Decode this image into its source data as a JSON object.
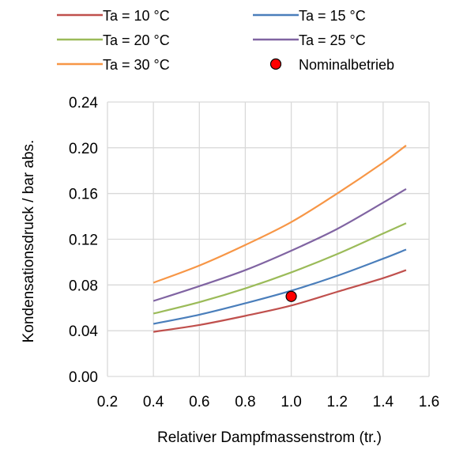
{
  "chart_data": {
    "type": "line",
    "xlabel": "Relativer Dampfmassenstrom (tr.)",
    "ylabel": "Kondensationsdruck / bar abs.",
    "xlim": [
      0.2,
      1.6
    ],
    "ylim": [
      0.0,
      0.24
    ],
    "x_ticks": [
      "0.2",
      "0.4",
      "0.6",
      "0.8",
      "1.0",
      "1.2",
      "1.4",
      "1.6"
    ],
    "y_ticks": [
      "0.00",
      "0.04",
      "0.08",
      "0.12",
      "0.16",
      "0.20",
      "0.24"
    ],
    "grid": true,
    "legend_position": "top",
    "series": [
      {
        "name": "Ta = 10 °C",
        "color": "#c0504d",
        "x": [
          0.4,
          0.6,
          0.8,
          1.0,
          1.2,
          1.4,
          1.5
        ],
        "y": [
          0.039,
          0.045,
          0.053,
          0.062,
          0.074,
          0.086,
          0.093
        ]
      },
      {
        "name": "Ta = 15 °C",
        "color": "#4a7ebb",
        "x": [
          0.4,
          0.6,
          0.8,
          1.0,
          1.2,
          1.4,
          1.5
        ],
        "y": [
          0.046,
          0.054,
          0.064,
          0.075,
          0.088,
          0.103,
          0.111
        ]
      },
      {
        "name": "Ta = 20 °C",
        "color": "#9bbb59",
        "x": [
          0.4,
          0.6,
          0.8,
          1.0,
          1.2,
          1.4,
          1.5
        ],
        "y": [
          0.055,
          0.065,
          0.077,
          0.091,
          0.107,
          0.125,
          0.134
        ]
      },
      {
        "name": "Ta = 25 °C",
        "color": "#8064a2",
        "x": [
          0.4,
          0.6,
          0.8,
          1.0,
          1.2,
          1.4,
          1.5
        ],
        "y": [
          0.066,
          0.079,
          0.093,
          0.11,
          0.129,
          0.152,
          0.164
        ]
      },
      {
        "name": "Ta = 30 °C",
        "color": "#f79646",
        "x": [
          0.4,
          0.6,
          0.8,
          1.0,
          1.2,
          1.4,
          1.5
        ],
        "y": [
          0.082,
          0.097,
          0.115,
          0.135,
          0.16,
          0.187,
          0.202
        ]
      }
    ],
    "points": [
      {
        "name": "Nominalbetrieb",
        "color": "#ff0000",
        "x": 1.0,
        "y": 0.07
      }
    ]
  }
}
